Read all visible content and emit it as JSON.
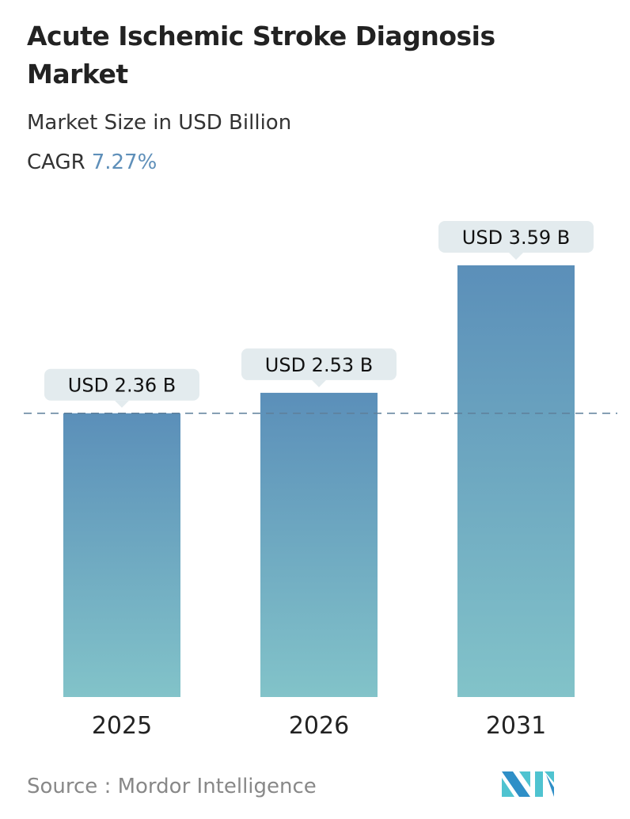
{
  "header": {
    "title": "Acute Ischemic Stroke Diagnosis Market",
    "subtitle": "Market Size in USD Billion",
    "cagr_label": "CAGR",
    "cagr_value": "7.27%"
  },
  "chart_data": {
    "type": "bar",
    "categories": [
      "2025",
      "2026",
      "2031"
    ],
    "values": [
      2.36,
      2.53,
      3.59
    ],
    "data_labels": [
      "USD 2.36 B",
      "USD 2.53 B",
      "USD 3.59 B"
    ],
    "ylim": [
      0,
      3.59
    ],
    "reference_line": 2.36,
    "grid": false,
    "colors": {
      "bar_top": "#5b8fb9",
      "bar_bottom": "#82c3c9",
      "label_bg": "#e3ebee",
      "ref_line": "#5e7f9a"
    }
  },
  "footer": {
    "source": "Source :  Mordor Intelligence",
    "logo_text": "MI"
  }
}
